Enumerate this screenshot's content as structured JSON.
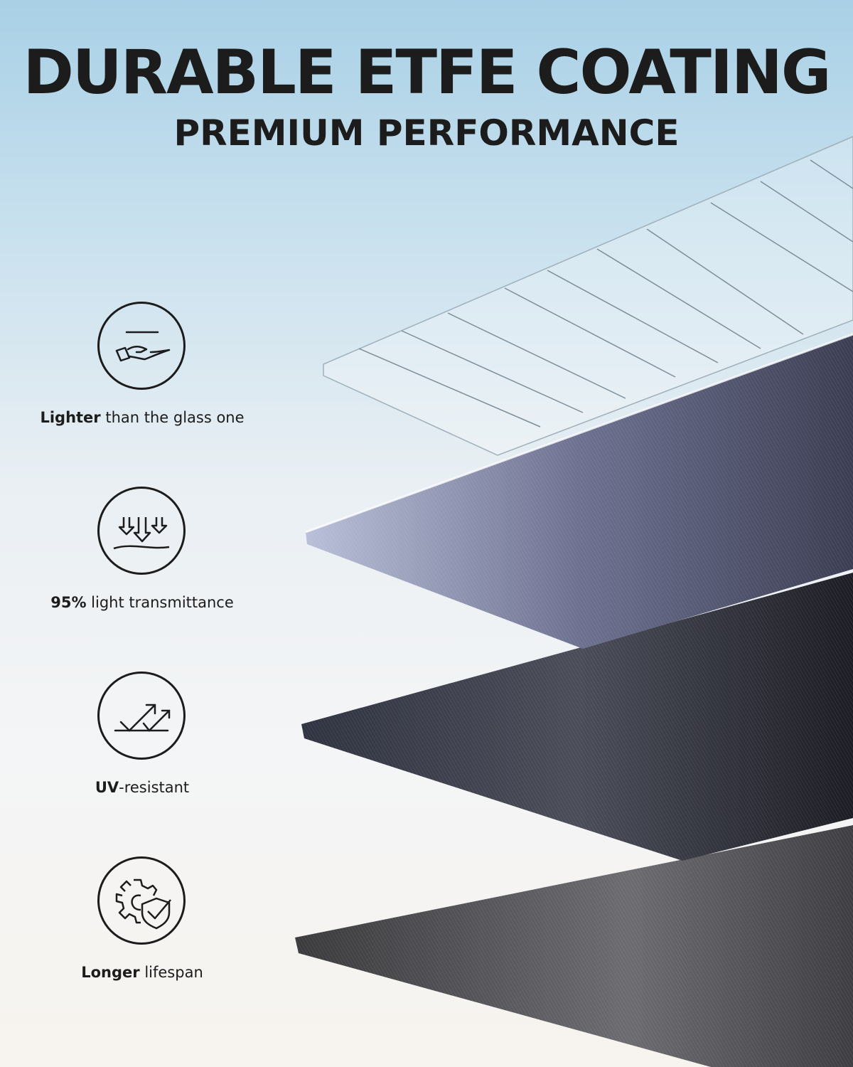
{
  "header": {
    "title": "DURABLE ETFE COATING",
    "subtitle": "PREMIUM PERFORMANCE"
  },
  "features": [
    {
      "icon": "hand-feather-icon",
      "bold": "Lighter",
      "text": " than the glass one"
    },
    {
      "icon": "light-arrows-icon",
      "bold": "95%",
      "text": " light transmittance"
    },
    {
      "icon": "uv-arrows-icon",
      "bold": "UV",
      "text": "-resistant"
    },
    {
      "icon": "gear-shield-icon",
      "bold": "Longer",
      "text": " lifespan"
    }
  ],
  "colors": {
    "text": "#1c1c1c",
    "sky": "#a9d0e6"
  }
}
